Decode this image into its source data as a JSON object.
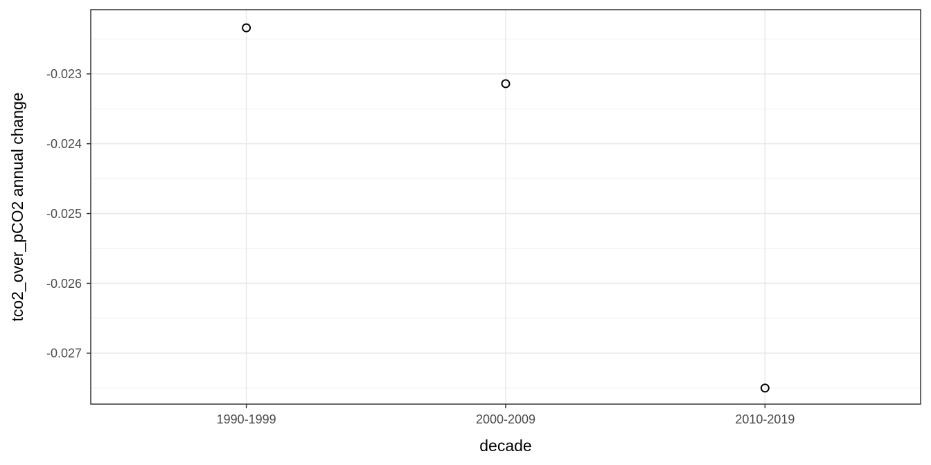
{
  "figure": {
    "kind": "ggplot-style scatter plot",
    "background": "#FFFFFF"
  },
  "colors": {
    "panel_background": "#FFFFFF",
    "panel_border": "#333333",
    "grid_major": "#E9E9E9",
    "grid_minor": "#F1F1F1",
    "tick_mark": "#333333",
    "tick_label": "#4D4D4D",
    "axis_title": "#000000",
    "point_stroke": "#000000"
  },
  "chart_data": {
    "type": "scatter",
    "title": "",
    "xlabel": "decade",
    "ylabel": "tco2_over_pCO2 annual change",
    "categories": [
      "1990-1999",
      "2000-2009",
      "2010-2019"
    ],
    "values": [
      -0.02234,
      -0.02314,
      -0.0275
    ],
    "y_ticks": [
      -0.023,
      -0.024,
      -0.025,
      -0.026,
      -0.027
    ],
    "y_tick_labels": [
      "-0.023",
      "-0.024",
      "-0.025",
      "-0.026",
      "-0.027"
    ],
    "y_minor_ticks": [
      -0.0225,
      -0.0235,
      -0.0245,
      -0.0255,
      -0.0265,
      -0.0275
    ],
    "ylim": [
      -0.02773,
      -0.02208
    ],
    "grid": "major-and-minor-horizontal, major-vertical-at-categories",
    "legend_position": "none",
    "point_style": "open-circle"
  }
}
